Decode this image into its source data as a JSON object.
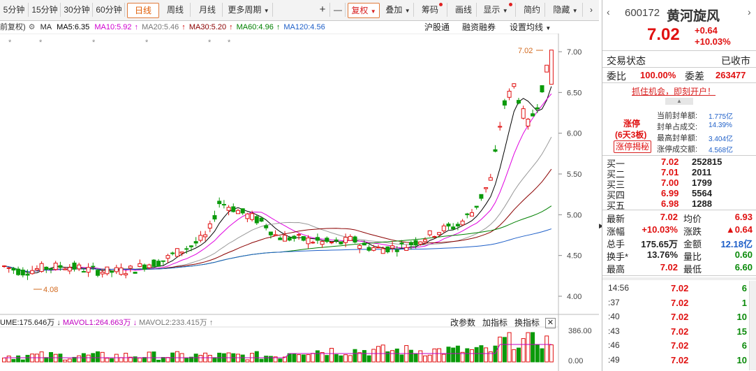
{
  "toolbar": {
    "periods": [
      "5分钟",
      "15分钟",
      "30分钟",
      "60分钟",
      "日线",
      "周线",
      "月线",
      "更多周期"
    ],
    "active": "日线",
    "plus": "+",
    "minus": "—",
    "fuquan": "复权",
    "diejia": "叠加",
    "chouma": "筹码",
    "huaxian": "画线",
    "xianshi": "显示",
    "jianyue": "简约",
    "yincang": "隐藏"
  },
  "ma_row": {
    "fq": "前复权)",
    "ma": "MA",
    "ma5": "MA5:6.35",
    "ma10": "MA10:5.92",
    "ma20": "MA20:5.46",
    "ma30": "MA30:5.20",
    "ma60": "MA60:4.96",
    "ma120": "MA120:4.56",
    "hgt": "沪股通",
    "rzrq": "融资融券",
    "setma": "设置均线"
  },
  "chart_data": {
    "type": "candlestick",
    "price_axis_ticks": [
      "7.00",
      "6.50",
      "6.00",
      "5.50",
      "5.00",
      "4.50",
      "4.00"
    ],
    "high_label": "7.02",
    "low_label": "4.08",
    "volume_axis_ticks": [
      "386.00",
      "0.00"
    ],
    "ma_colors": {
      "ma5": "#000000",
      "ma10": "#e000e0",
      "ma20": "#999999",
      "ma30": "#8b0000",
      "ma60": "#008000",
      "ma120": "#1e5fc8"
    },
    "last_ohlc": {
      "open": 6.6,
      "high": 7.02,
      "low": 6.6,
      "close": 7.02
    }
  },
  "vol_hdr": {
    "vol": "UME:175.646万",
    "mavol1": "MAVOL1:264.663万",
    "mavol2": "MAVOL2:233.415万",
    "gaicanshu": "改参数",
    "jiazhibiao": "加指标",
    "huanzhibiao": "换指标"
  },
  "stock": {
    "code": "600172",
    "name": "黄河旋风",
    "price": "7.02",
    "change": "+0.64",
    "pct": "+10.03%",
    "jiaoyi_label": "交易状态",
    "jiaoyi_value": "已收市",
    "weibi_label": "委比",
    "weibi_value": "100.00%",
    "weicha_label": "委差",
    "weicha_value": "263477",
    "promo": "抓住机会，即刻开户！",
    "zt_label": "涨停",
    "zt_board": "(6天3板)",
    "zt_button": "涨停揭秘",
    "zt_stats": [
      {
        "label": "当前封单额:",
        "value": "1.775亿"
      },
      {
        "label": "封单占成交:",
        "value": "14.39%"
      },
      {
        "label": "最高封单额:",
        "value": "3.404亿"
      },
      {
        "label": "涨停成交额:",
        "value": "4.568亿"
      }
    ],
    "bids": [
      {
        "label": "买一",
        "price": "7.02",
        "vol": "252815"
      },
      {
        "label": "买二",
        "price": "7.01",
        "vol": "2011"
      },
      {
        "label": "买三",
        "price": "7.00",
        "vol": "1799"
      },
      {
        "label": "买四",
        "price": "6.99",
        "vol": "5564"
      },
      {
        "label": "买五",
        "price": "6.98",
        "vol": "1288"
      }
    ],
    "stats": [
      {
        "l1": "最新",
        "v1": "7.02",
        "l2": "均价",
        "v2": "6.93"
      },
      {
        "l1": "涨幅",
        "v1": "+10.03%",
        "l2": "涨跌",
        "v2": "▲0.64"
      },
      {
        "l1": "总手",
        "v1": "175.65万",
        "l2": "金额",
        "v2": "12.18亿"
      },
      {
        "l1": "换手*",
        "v1": "13.76%",
        "l2": "量比",
        "v2": "0.60"
      },
      {
        "l1": "最高",
        "v1": "7.02",
        "l2": "最低",
        "v2": "6.60"
      }
    ],
    "ticks": [
      {
        "time": "14:56",
        "price": "7.02",
        "vol": "6"
      },
      {
        "time": ":37",
        "price": "7.02",
        "vol": "1"
      },
      {
        "time": ":40",
        "price": "7.02",
        "vol": "10"
      },
      {
        "time": ":43",
        "price": "7.02",
        "vol": "15"
      },
      {
        "time": ":46",
        "price": "7.02",
        "vol": "6"
      },
      {
        "time": ":49",
        "price": "7.02",
        "vol": "10"
      }
    ]
  }
}
